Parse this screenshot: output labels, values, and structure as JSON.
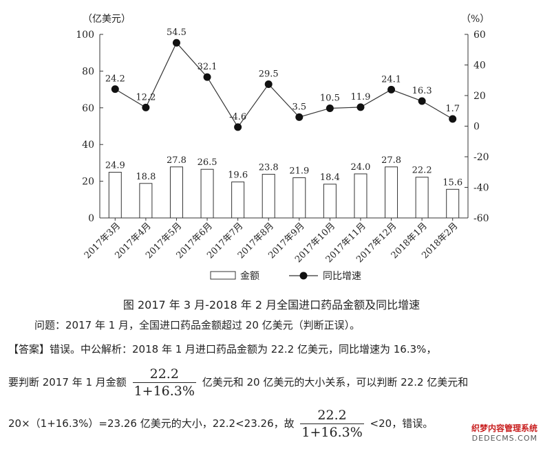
{
  "chart_data": {
    "type": "bar+line",
    "title": "图 2017 年 3 月-2018 年 2 月全国进口药品金额及同比增速",
    "categories": [
      "2017年3月",
      "2017年4月",
      "2017年5月",
      "2017年6月",
      "2017年7月",
      "2017年8月",
      "2017年9月",
      "2017年10月",
      "2017年11月",
      "2017年12月",
      "2018年1月",
      "2018年2月"
    ],
    "series": [
      {
        "name": "金额",
        "type": "bar",
        "axis": "left",
        "values": [
          24.9,
          18.8,
          27.8,
          26.5,
          19.6,
          23.8,
          21.9,
          18.4,
          24.0,
          27.8,
          22.2,
          15.6
        ],
        "labels": [
          "24.9",
          "18.8",
          "27.8",
          "26.5",
          "19.6",
          "23.8",
          "21.9",
          "18.4",
          "24.0",
          "27.8",
          "22.2",
          "15.6"
        ]
      },
      {
        "name": "同比增速",
        "type": "line",
        "axis": "right",
        "values": [
          24.2,
          12.2,
          54.5,
          32.1,
          -0.6,
          27.4,
          5.9,
          11.7,
          12.4,
          23.9,
          16.4,
          4.7
        ],
        "labels": [
          "24.2",
          "12.2",
          "54.5",
          "32.1",
          "-4.6",
          "29.5",
          "3.5",
          "10.5",
          "11.9",
          "24.1",
          "16.3",
          "1.7"
        ]
      }
    ],
    "left_axis": {
      "unit": "（亿美元）",
      "ylim": [
        0,
        100
      ],
      "ticks": [
        0,
        20,
        40,
        60,
        80,
        100
      ]
    },
    "right_axis": {
      "unit": "（%）",
      "ylim": [
        -60,
        60
      ],
      "ticks": [
        -60,
        -40,
        -20,
        0,
        20,
        40,
        60
      ]
    },
    "legend_position": "bottom"
  },
  "text": {
    "question": "问题：2017 年 1 月，全国进口药品金额超过 20 亿美元（判断正误）。",
    "answer_line1": "【答案】错误。中公解析：2018 年 1 月进口药品金额为 22.2 亿美元，同比增速为 16.3%，",
    "answer_line2_pre": "要判断 2017 年 1 月金额",
    "answer_line2_post": "亿美元和 20 亿美元的大小关系，可以判断 22.2 亿美元和",
    "answer_line3_pre": "20×（1+16.3%）=23.26 亿美元的大小，22.2<23.26，故",
    "answer_line3_post": "<20，错误。",
    "frac_num": "22.2",
    "frac_den": "1+16.3%"
  },
  "watermark": {
    "line1": "织梦内容管理系统",
    "line2": "DEDECMS.COM"
  }
}
